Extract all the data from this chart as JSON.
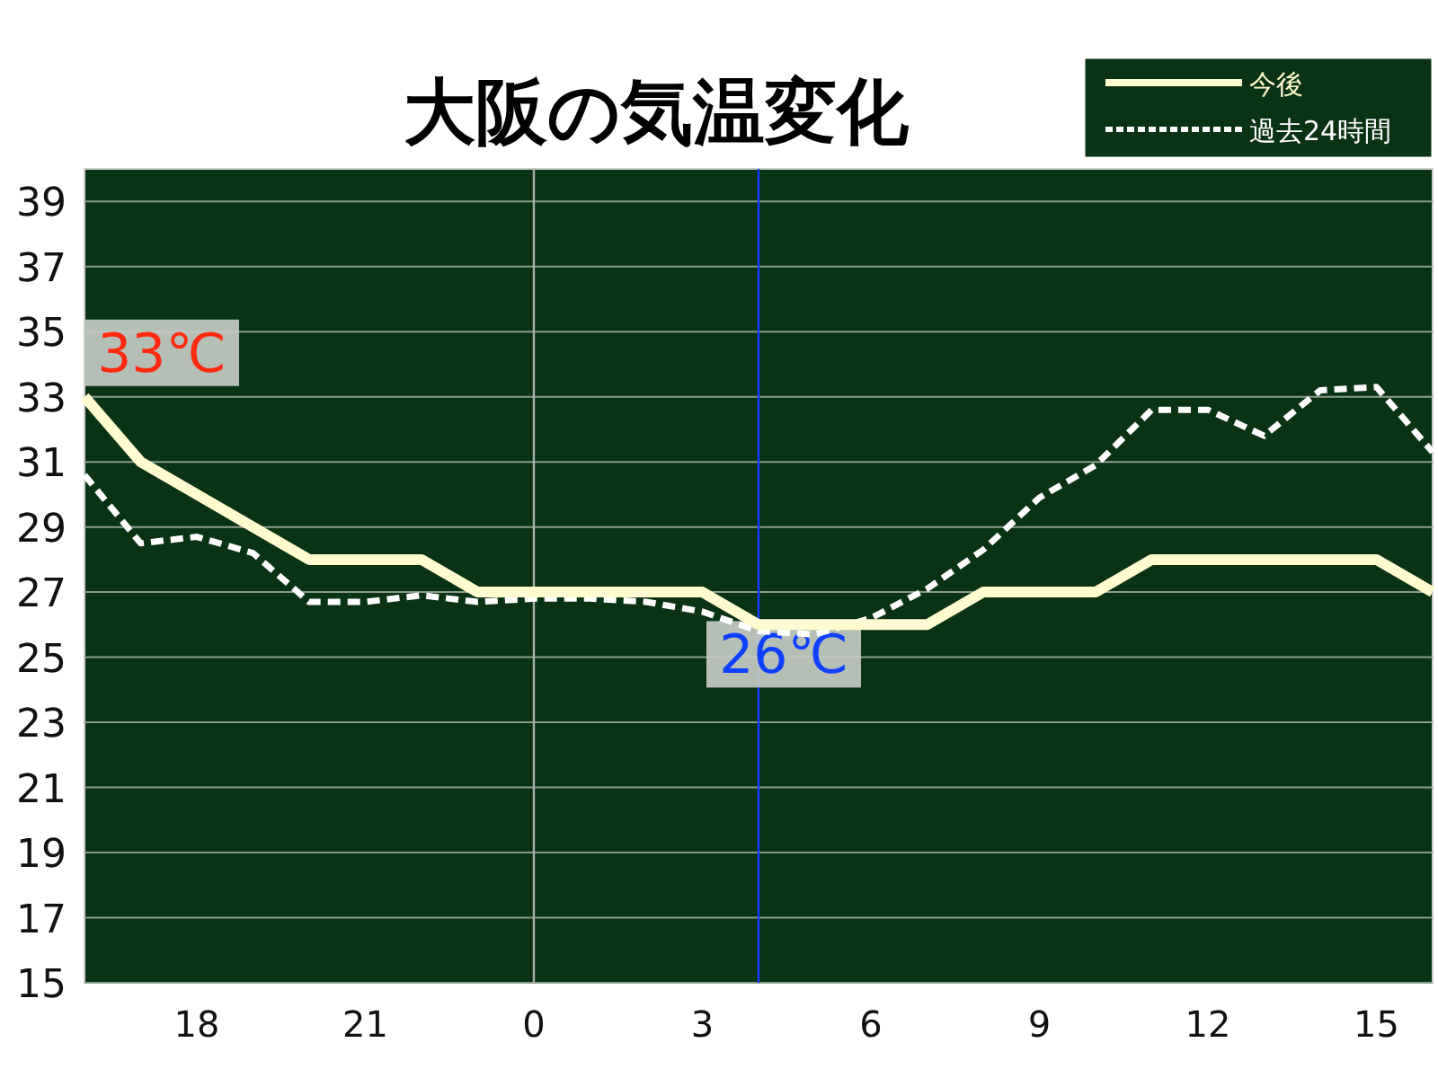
{
  "chart_data": {
    "type": "line",
    "title": "大阪の気温変化",
    "categories": [
      null,
      null,
      "18",
      null,
      null,
      "21",
      null,
      null,
      "0",
      null,
      null,
      "3",
      null,
      null,
      "6",
      null,
      null,
      "9",
      null,
      null,
      "12",
      null,
      null,
      "15",
      null
    ],
    "series": [
      {
        "name": "今後",
        "color": "#fffbd0",
        "line_style": "solid",
        "values": [
          33,
          31,
          30,
          29,
          28,
          28,
          28,
          27,
          27,
          27,
          27,
          27,
          26,
          26,
          26,
          26,
          27,
          27,
          27,
          28,
          28,
          28,
          28,
          28,
          27
        ]
      },
      {
        "name": "過去24時間",
        "color": "#ffffff",
        "line_style": "dashed",
        "values": [
          30.6,
          28.5,
          28.7,
          28.2,
          26.7,
          26.7,
          26.9,
          26.7,
          26.8,
          26.8,
          26.7,
          26.4,
          25.8,
          25.7,
          26.2,
          27.1,
          28.3,
          29.9,
          30.9,
          32.6,
          32.6,
          31.8,
          33.2,
          33.3,
          31.3
        ]
      }
    ],
    "ylim": [
      15,
      40
    ],
    "yticks": [
      15,
      17,
      19,
      21,
      23,
      25,
      27,
      29,
      31,
      33,
      35,
      37,
      39
    ],
    "grid": "y",
    "legend": "top right",
    "ref_lines": [
      {
        "axis": "x",
        "value": "0",
        "color": "#a8b0a8"
      }
    ],
    "annotations": [
      "33℃",
      "26℃"
    ]
  }
}
